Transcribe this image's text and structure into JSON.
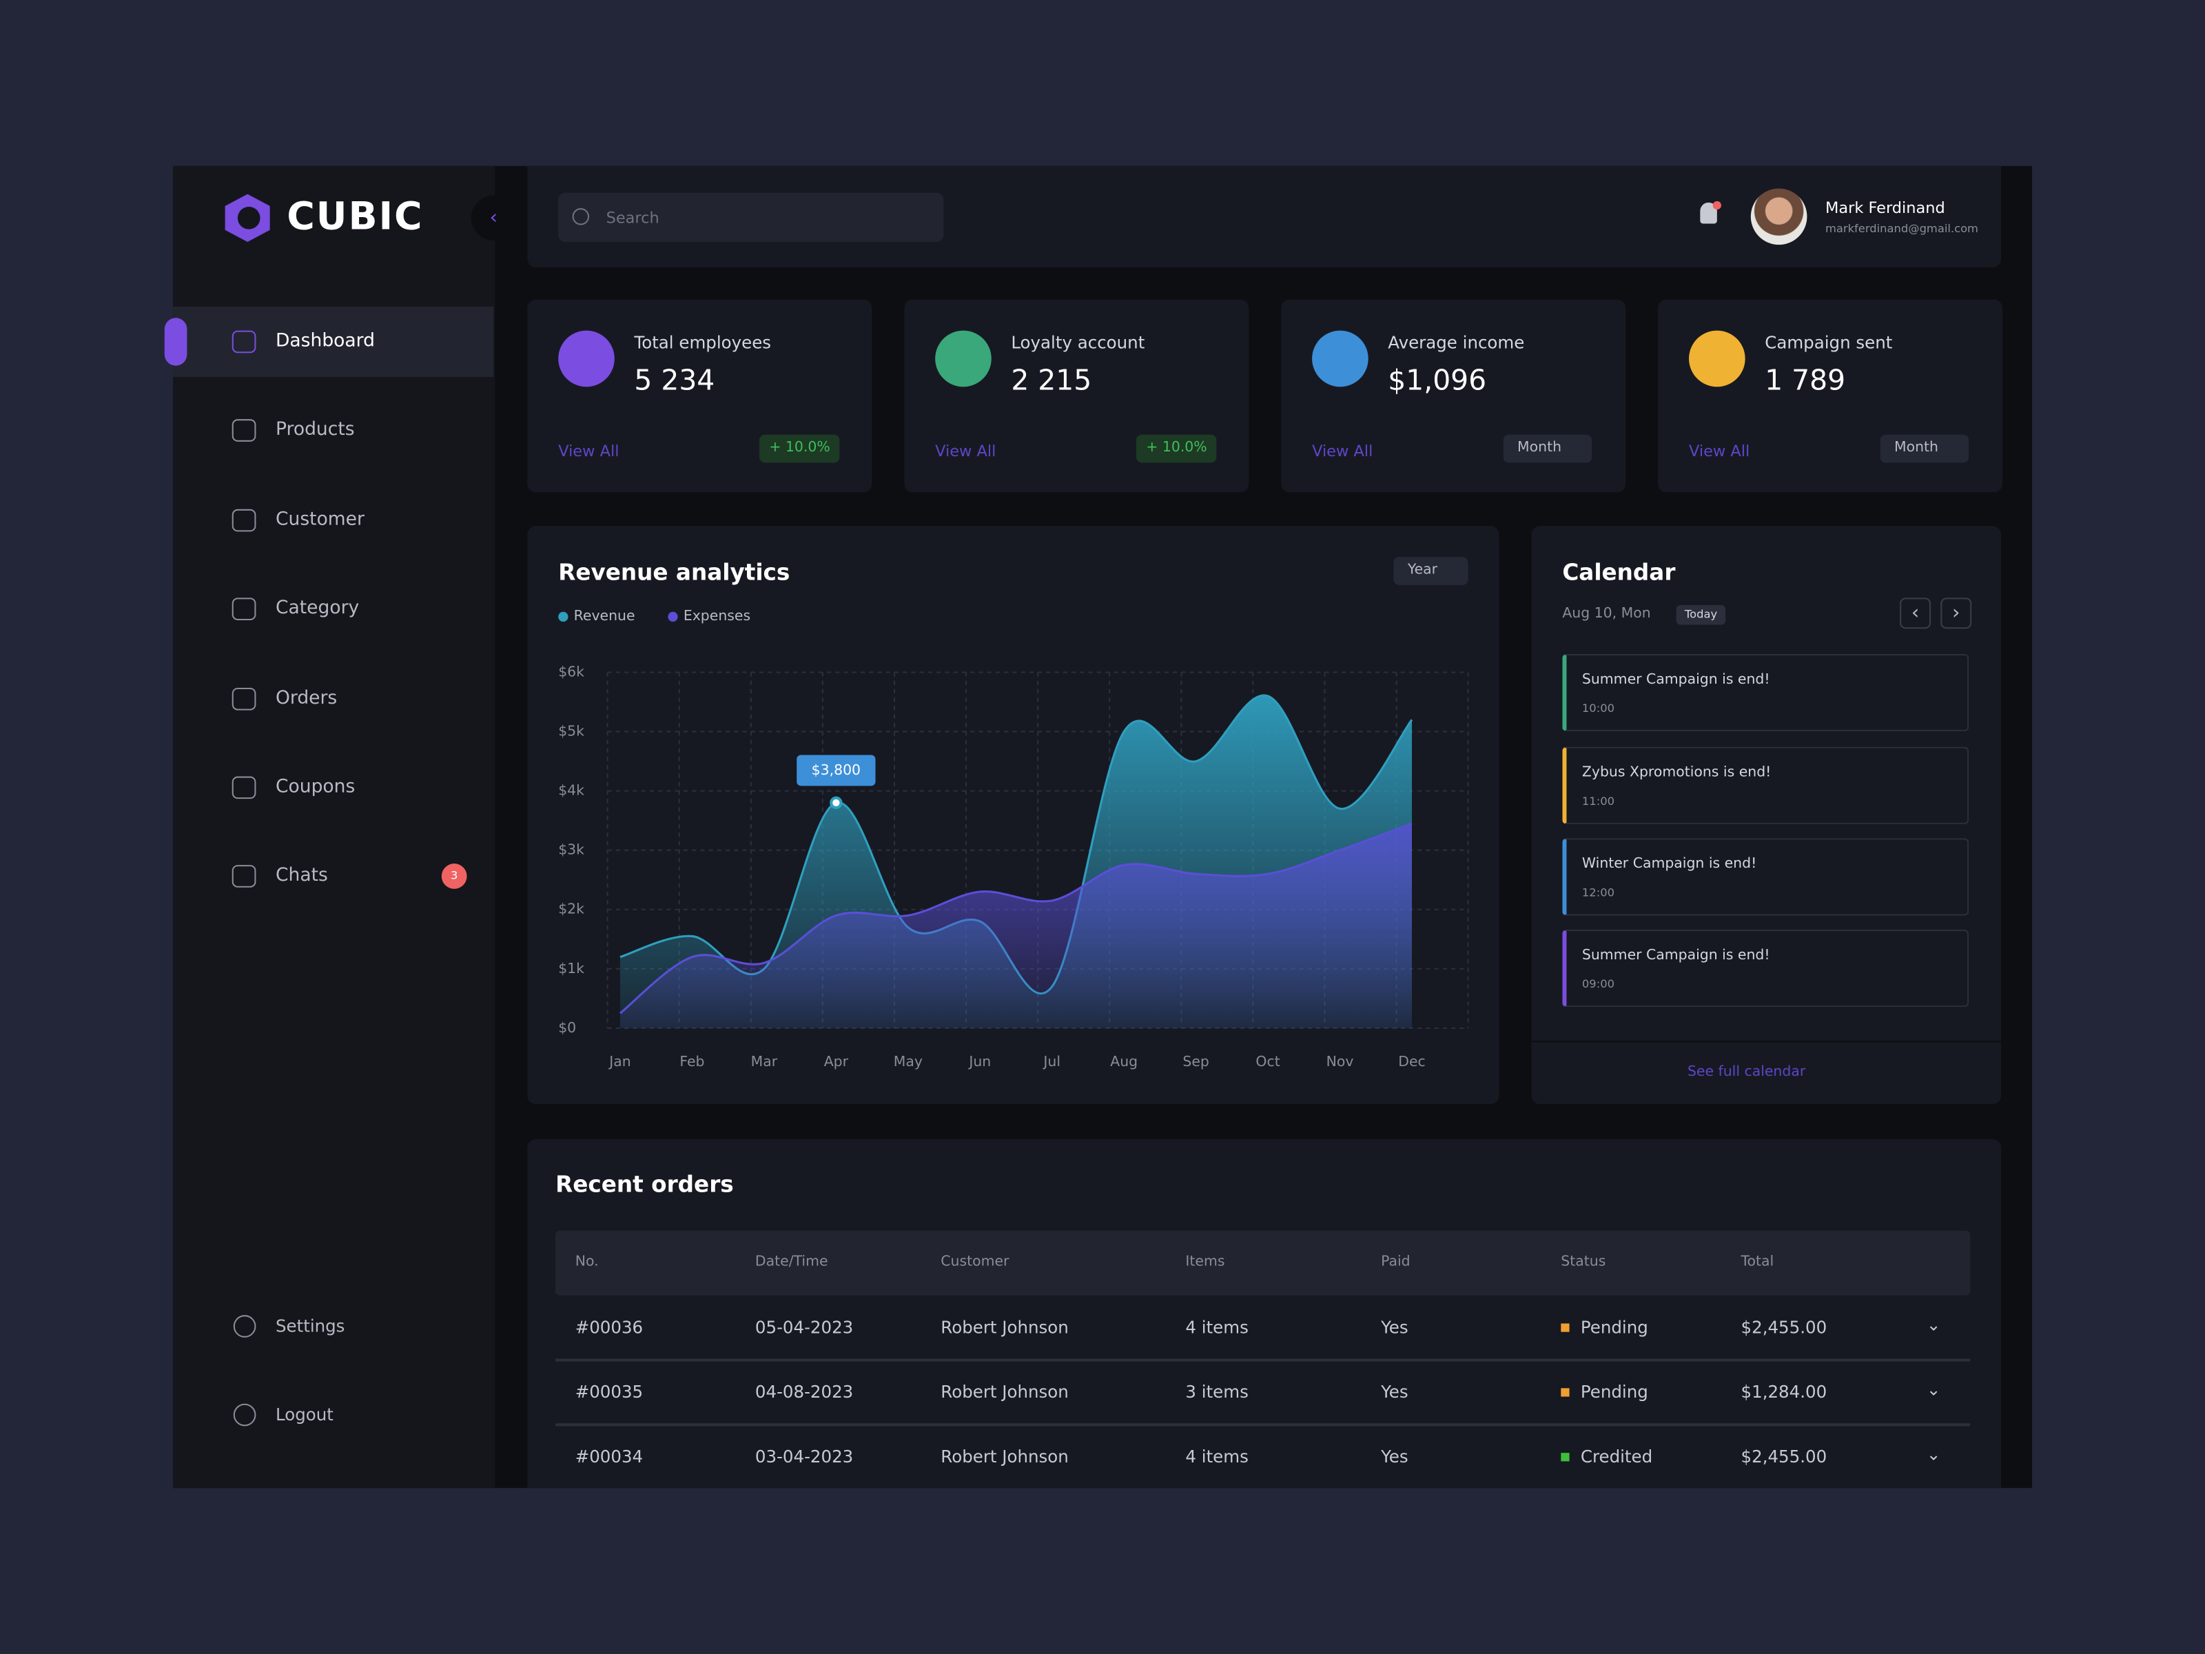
{
  "brand": "CUBIC",
  "search_placeholder": "Search",
  "user": {
    "name": "Mark Ferdinand",
    "email": "markferdinand@gmail.com"
  },
  "nav": [
    "Dashboard",
    "Products",
    "Customer",
    "Category",
    "Orders",
    "Coupons",
    "Chats"
  ],
  "chats_badge": "3",
  "nav_bottom": [
    "Settings",
    "Logout"
  ],
  "stats": [
    {
      "label": "Total employees",
      "value": "5 234",
      "link": "View All",
      "badge": "+ 10.0%"
    },
    {
      "label": "Loyalty account",
      "value": "2 215",
      "link": "View All",
      "badge": "+ 10.0%"
    },
    {
      "label": "Average income",
      "value": "$1,096",
      "link": "View All",
      "dropdown": "Month"
    },
    {
      "label": "Campaign sent",
      "value": "1 789",
      "link": "View All",
      "dropdown": "Month"
    }
  ],
  "chart_data": {
    "type": "area",
    "title": "Revenue analytics",
    "filter": "Year",
    "categories": [
      "Jan",
      "Feb",
      "Mar",
      "Apr",
      "May",
      "Jun",
      "Jul",
      "Aug",
      "Sep",
      "Oct",
      "Nov",
      "Dec"
    ],
    "series": [
      {
        "name": "Revenue",
        "color": "#2f9fbf",
        "values": [
          1.2,
          1.55,
          1.0,
          3.8,
          1.7,
          1.8,
          0.7,
          5.0,
          4.5,
          5.6,
          3.7,
          5.2
        ],
        "value_labels": [
          null,
          null,
          null,
          "$3,800",
          null,
          null,
          null,
          null,
          null,
          null,
          null,
          null
        ]
      },
      {
        "name": "Expenses",
        "color": "#5a4fd6",
        "values": [
          0.25,
          1.2,
          1.1,
          1.9,
          1.9,
          2.3,
          2.15,
          2.75,
          2.6,
          2.6,
          3.0,
          3.45
        ]
      }
    ],
    "ylim": [
      0,
      6
    ],
    "yticks": [
      {
        "value": 0,
        "label": "$0"
      },
      {
        "value": 1,
        "label": "$1k"
      },
      {
        "value": 2,
        "label": "$2k"
      },
      {
        "value": 3,
        "label": "$3k"
      },
      {
        "value": 4,
        "label": "$4k"
      },
      {
        "value": 5,
        "label": "$5k"
      },
      {
        "value": 6,
        "label": "$6k"
      }
    ],
    "grid": true
  },
  "calendar": {
    "title": "Calendar",
    "date": "Aug 10, Mon",
    "today": "Today",
    "events": [
      {
        "title": "Summer Campaign is end!",
        "time": "10:00",
        "color": "#3aa87a"
      },
      {
        "title": "Zybus Xpromotions is end!",
        "time": "11:00",
        "color": "#f0b232"
      },
      {
        "title": "Winter Campaign is end!",
        "time": "12:00",
        "color": "#3d8fd8"
      },
      {
        "title": "Summer Campaign is end!",
        "time": "09:00",
        "color": "#7b4de0"
      }
    ],
    "link": "See full calendar"
  },
  "orders": {
    "title": "Recent orders",
    "columns": [
      "No.",
      "Date/Time",
      "Customer",
      "Items",
      "Paid",
      "Status",
      "Total"
    ],
    "rows": [
      {
        "cells": [
          "#00036",
          "05-04-2023",
          "Robert Johnson",
          "4 items",
          "Yes",
          "Pending",
          "$2,455.00"
        ],
        "status_color": "#f0a030"
      },
      {
        "cells": [
          "#00035",
          "04-08-2023",
          "Robert Johnson",
          "3 items",
          "Yes",
          "Pending",
          "$1,284.00"
        ],
        "status_color": "#f0a030"
      },
      {
        "cells": [
          "#00034",
          "03-04-2023",
          "Robert Johnson",
          "4 items",
          "Yes",
          "Credited",
          "$2,455.00"
        ],
        "status_color": "#3fbf3a"
      }
    ]
  }
}
